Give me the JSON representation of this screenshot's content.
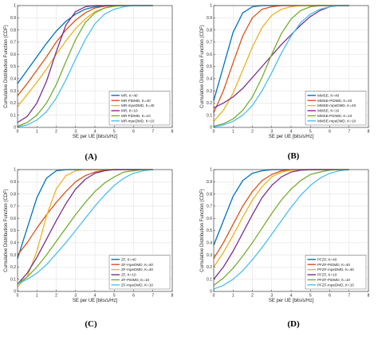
{
  "colors": {
    "blue": "#0072bd",
    "orange": "#d95319",
    "yellow": "#edb120",
    "purple": "#7e2f8e",
    "green": "#77ac30",
    "cyan": "#4dbeee",
    "grid": "#e3e3e3",
    "axis": "#262626"
  },
  "chart_data": [
    {
      "panel": "(A)",
      "type": "line",
      "xlabel": "SE per UE [bits/s/Hz]",
      "ylabel": "Cumulative Distribution Function (CDF)",
      "xlim": [
        0,
        8
      ],
      "ylim": [
        0,
        1
      ],
      "xticks": [
        "0",
        "1",
        "2",
        "3",
        "4",
        "5",
        "6",
        "7",
        "8"
      ],
      "yticks": [
        "0",
        "0.1",
        "0.2",
        "0.3",
        "0.4",
        "0.5",
        "0.6",
        "0.7",
        "0.8",
        "0.9",
        "1"
      ],
      "grid": true,
      "legend_position": "bottom-right",
      "series": [
        {
          "name": "MR, K=40",
          "color": "blue",
          "x": [
            0,
            0.5,
            1,
            1.5,
            2,
            2.5,
            3,
            3.5,
            4,
            4.5,
            5,
            5.5,
            6,
            6.5,
            7
          ],
          "y": [
            0.36,
            0.47,
            0.58,
            0.69,
            0.79,
            0.87,
            0.93,
            0.97,
            0.99,
            1.0,
            1.0,
            1.0,
            1.0,
            1.0,
            1.0
          ]
        },
        {
          "name": "MR-PiDMD, K=40",
          "color": "orange",
          "x": [
            0,
            0.5,
            1,
            1.5,
            2,
            2.5,
            3,
            3.5,
            4,
            4.5,
            5,
            5.5,
            6,
            6.5,
            7
          ],
          "y": [
            0.26,
            0.36,
            0.47,
            0.58,
            0.7,
            0.8,
            0.88,
            0.94,
            0.98,
            0.995,
            1.0,
            1.0,
            1.0,
            1.0,
            1.0
          ]
        },
        {
          "name": "MR-mpeDMD, K=40",
          "color": "yellow",
          "x": [
            0,
            0.5,
            1,
            1.5,
            2,
            2.5,
            3,
            3.5,
            4,
            4.5,
            5,
            5.5,
            6,
            6.5,
            7
          ],
          "y": [
            0.17,
            0.27,
            0.37,
            0.48,
            0.6,
            0.71,
            0.81,
            0.89,
            0.95,
            0.98,
            0.995,
            1.0,
            1.0,
            1.0,
            1.0
          ]
        },
        {
          "name": "MR, K=10",
          "color": "purple",
          "x": [
            0,
            0.5,
            1,
            1.5,
            2,
            2.5,
            3,
            3.5,
            4,
            4.5,
            5,
            5.5,
            6,
            6.5,
            7
          ],
          "y": [
            0.04,
            0.09,
            0.2,
            0.38,
            0.62,
            0.84,
            0.95,
            0.99,
            1.0,
            1.0,
            1.0,
            1.0,
            1.0,
            1.0,
            1.0
          ]
        },
        {
          "name": "MR-PiDMD, K=10",
          "color": "green",
          "x": [
            0,
            0.5,
            1,
            1.5,
            2,
            2.5,
            3,
            3.5,
            4,
            4.5,
            5,
            5.5,
            6,
            6.5,
            7
          ],
          "y": [
            0.01,
            0.04,
            0.1,
            0.2,
            0.35,
            0.54,
            0.72,
            0.86,
            0.94,
            0.98,
            0.995,
            1.0,
            1.0,
            1.0,
            1.0
          ]
        },
        {
          "name": "MR-mpeDMD, K=10",
          "color": "cyan",
          "x": [
            0,
            0.5,
            1,
            1.5,
            2,
            2.5,
            3,
            3.5,
            4,
            4.5,
            5,
            5.5,
            6,
            6.5,
            7
          ],
          "y": [
            0.005,
            0.02,
            0.06,
            0.13,
            0.24,
            0.39,
            0.56,
            0.72,
            0.85,
            0.93,
            0.97,
            0.99,
            1.0,
            1.0,
            1.0
          ]
        }
      ]
    },
    {
      "panel": "(B)",
      "type": "line",
      "xlabel": "SE per UE [bits/s/Hz]",
      "ylabel": "Cumulative Distribution Function (CDF)",
      "xlim": [
        0,
        8
      ],
      "ylim": [
        0,
        1
      ],
      "xticks": [
        "0",
        "1",
        "2",
        "3",
        "4",
        "5",
        "6",
        "7",
        "8"
      ],
      "yticks": [
        "0",
        "0.1",
        "0.2",
        "0.3",
        "0.4",
        "0.5",
        "0.6",
        "0.7",
        "0.8",
        "0.9",
        "1"
      ],
      "grid": true,
      "legend_position": "bottom-right",
      "series": [
        {
          "name": "MMSE, K=40",
          "color": "blue",
          "x": [
            0,
            0.5,
            1,
            1.5,
            2,
            2.5,
            3,
            3.5,
            4,
            4.5,
            5,
            5.5,
            6,
            6.5,
            7
          ],
          "y": [
            0.22,
            0.5,
            0.78,
            0.94,
            0.99,
            1.0,
            1.0,
            1.0,
            1.0,
            1.0,
            1.0,
            1.0,
            1.0,
            1.0,
            1.0
          ]
        },
        {
          "name": "MMSE-PiDMD, K=40",
          "color": "orange",
          "x": [
            0,
            0.5,
            1,
            1.5,
            2,
            2.5,
            3,
            3.5,
            4,
            4.5,
            5,
            5.5,
            6,
            6.5,
            7
          ],
          "y": [
            0.12,
            0.3,
            0.53,
            0.75,
            0.9,
            0.97,
            0.99,
            1.0,
            1.0,
            1.0,
            1.0,
            1.0,
            1.0,
            1.0,
            1.0
          ]
        },
        {
          "name": "MMSE-mpeDMD, K=40",
          "color": "yellow",
          "x": [
            0,
            0.5,
            1,
            1.5,
            2,
            2.5,
            3,
            3.5,
            4,
            4.5,
            5,
            5.5,
            6,
            6.5,
            7
          ],
          "y": [
            0.05,
            0.14,
            0.28,
            0.47,
            0.66,
            0.82,
            0.92,
            0.97,
            0.99,
            1.0,
            1.0,
            1.0,
            1.0,
            1.0,
            1.0
          ]
        },
        {
          "name": "MMSE, K=10",
          "color": "purple",
          "x": [
            0,
            0.5,
            1,
            1.5,
            2,
            2.5,
            3,
            3.5,
            4,
            4.5,
            5,
            5.5,
            6,
            6.5,
            7
          ],
          "y": [
            0.16,
            0.2,
            0.25,
            0.32,
            0.41,
            0.5,
            0.59,
            0.68,
            0.76,
            0.84,
            0.91,
            0.96,
            0.99,
            1.0,
            1.0
          ]
        },
        {
          "name": "MMSE-PiDMD, K=10",
          "color": "green",
          "x": [
            0,
            0.5,
            1,
            1.5,
            2,
            2.5,
            3,
            3.5,
            4,
            4.5,
            5,
            5.5,
            6,
            6.5,
            7
          ],
          "y": [
            0.01,
            0.03,
            0.07,
            0.14,
            0.25,
            0.41,
            0.6,
            0.77,
            0.89,
            0.96,
            0.99,
            1.0,
            1.0,
            1.0,
            1.0
          ]
        },
        {
          "name": "MMSE-mpeDMD, K=10",
          "color": "cyan",
          "x": [
            0,
            0.5,
            1,
            1.5,
            2,
            2.5,
            3,
            3.5,
            4,
            4.5,
            5,
            5.5,
            6,
            6.5,
            7
          ],
          "y": [
            0.005,
            0.02,
            0.05,
            0.1,
            0.18,
            0.3,
            0.45,
            0.61,
            0.75,
            0.86,
            0.93,
            0.97,
            0.99,
            1.0,
            1.0
          ]
        }
      ]
    },
    {
      "panel": "(C)",
      "type": "line",
      "xlabel": "SE per UE [bits/s/Hz]",
      "ylabel": "Cumulative Distribution Function (CDF)",
      "xlim": [
        0,
        8
      ],
      "ylim": [
        0,
        1
      ],
      "xticks": [
        "0",
        "1",
        "2",
        "3",
        "4",
        "5",
        "6",
        "7",
        "8"
      ],
      "yticks": [
        "0",
        "0.1",
        "0.2",
        "0.3",
        "0.4",
        "0.5",
        "0.6",
        "0.7",
        "0.8",
        "0.9",
        "1"
      ],
      "grid": true,
      "legend_position": "bottom-right",
      "series": [
        {
          "name": "ZF, K=40",
          "color": "blue",
          "x": [
            0,
            0.5,
            1,
            1.5,
            2,
            2.5,
            3,
            3.5,
            4,
            4.5,
            5,
            5.5,
            6,
            6.5,
            7
          ],
          "y": [
            0.27,
            0.52,
            0.77,
            0.93,
            0.99,
            1.0,
            1.0,
            1.0,
            1.0,
            1.0,
            1.0,
            1.0,
            1.0,
            1.0,
            1.0
          ]
        },
        {
          "name": "ZF-mpeDMD, K=40",
          "color": "orange",
          "x": [
            0,
            0.5,
            1,
            1.5,
            2,
            2.5,
            3,
            3.5,
            4,
            4.5,
            5,
            5.5,
            6,
            6.5,
            7
          ],
          "y": [
            0.3,
            0.4,
            0.52,
            0.63,
            0.73,
            0.82,
            0.9,
            0.95,
            0.98,
            0.995,
            1.0,
            1.0,
            1.0,
            1.0,
            1.0
          ]
        },
        {
          "name": "ZF-mpeDMD, K=40",
          "color": "yellow",
          "x": [
            0,
            0.5,
            1,
            1.5,
            2,
            2.5,
            3,
            3.5,
            4,
            4.5,
            5,
            5.5,
            6,
            6.5,
            7
          ],
          "y": [
            0.04,
            0.12,
            0.33,
            0.62,
            0.84,
            0.95,
            0.99,
            1.0,
            1.0,
            1.0,
            1.0,
            1.0,
            1.0,
            1.0,
            1.0
          ]
        },
        {
          "name": "ZF, K=10",
          "color": "purple",
          "x": [
            0,
            0.5,
            1,
            1.5,
            2,
            2.5,
            3,
            3.5,
            4,
            4.5,
            5,
            5.5,
            6,
            6.5,
            7
          ],
          "y": [
            0.06,
            0.15,
            0.28,
            0.43,
            0.58,
            0.72,
            0.84,
            0.92,
            0.97,
            0.99,
            1.0,
            1.0,
            1.0,
            1.0,
            1.0
          ]
        },
        {
          "name": "ZF-PiDMD, K=10",
          "color": "green",
          "x": [
            0,
            0.5,
            1,
            1.5,
            2,
            2.5,
            3,
            3.5,
            4,
            4.5,
            5,
            5.5,
            6,
            6.5,
            7
          ],
          "y": [
            0.06,
            0.12,
            0.2,
            0.3,
            0.41,
            0.52,
            0.63,
            0.73,
            0.82,
            0.89,
            0.94,
            0.98,
            0.99,
            1.0,
            1.0
          ]
        },
        {
          "name": "ZF-mpeDMD, K=10",
          "color": "cyan",
          "x": [
            0,
            0.5,
            1,
            1.5,
            2,
            2.5,
            3,
            3.5,
            4,
            4.5,
            5,
            5.5,
            6,
            6.5,
            7
          ],
          "y": [
            0.06,
            0.1,
            0.15,
            0.22,
            0.31,
            0.4,
            0.5,
            0.6,
            0.7,
            0.79,
            0.87,
            0.93,
            0.97,
            0.99,
            1.0
          ]
        }
      ]
    },
    {
      "panel": "(D)",
      "type": "line",
      "xlabel": "SE per UE [bits/s/Hz]",
      "ylabel": "Cumulative Distribution Function (CDF)",
      "xlim": [
        0,
        8
      ],
      "ylim": [
        0,
        1
      ],
      "xticks": [
        "0",
        "1",
        "2",
        "3",
        "4",
        "5",
        "6",
        "7",
        "8"
      ],
      "yticks": [
        "0",
        "0.1",
        "0.2",
        "0.3",
        "0.4",
        "0.5",
        "0.6",
        "0.7",
        "0.8",
        "0.9",
        "1"
      ],
      "grid": true,
      "legend_position": "bottom-right",
      "series": [
        {
          "name": "PFZF, K=40",
          "color": "blue",
          "x": [
            0,
            0.5,
            1,
            1.5,
            2,
            2.5,
            3,
            3.5,
            4,
            4.5,
            5,
            5.5,
            6,
            6.5,
            7
          ],
          "y": [
            0.38,
            0.58,
            0.78,
            0.91,
            0.97,
            0.99,
            1.0,
            1.0,
            1.0,
            1.0,
            1.0,
            1.0,
            1.0,
            1.0,
            1.0
          ]
        },
        {
          "name": "PFZF-PiDMD, K=40",
          "color": "orange",
          "x": [
            0,
            0.5,
            1,
            1.5,
            2,
            2.5,
            3,
            3.5,
            4,
            4.5,
            5,
            5.5,
            6,
            6.5,
            7
          ],
          "y": [
            0.27,
            0.4,
            0.55,
            0.7,
            0.82,
            0.91,
            0.96,
            0.99,
            1.0,
            1.0,
            1.0,
            1.0,
            1.0,
            1.0,
            1.0
          ]
        },
        {
          "name": "PFZF-mpeDMD, K=40",
          "color": "yellow",
          "x": [
            0,
            0.5,
            1,
            1.5,
            2,
            2.5,
            3,
            3.5,
            4,
            4.5,
            5,
            5.5,
            6,
            6.5,
            7
          ],
          "y": [
            0.2,
            0.32,
            0.46,
            0.61,
            0.75,
            0.86,
            0.94,
            0.98,
            0.995,
            1.0,
            1.0,
            1.0,
            1.0,
            1.0,
            1.0
          ]
        },
        {
          "name": "PFZF, K=10",
          "color": "purple",
          "x": [
            0,
            0.5,
            1,
            1.5,
            2,
            2.5,
            3,
            3.5,
            4,
            4.5,
            5,
            5.5,
            6,
            6.5,
            7
          ],
          "y": [
            0.1,
            0.2,
            0.33,
            0.48,
            0.63,
            0.77,
            0.87,
            0.94,
            0.98,
            0.995,
            1.0,
            1.0,
            1.0,
            1.0,
            1.0
          ]
        },
        {
          "name": "PFZF-PiDMD, K=10",
          "color": "green",
          "x": [
            0,
            0.5,
            1,
            1.5,
            2,
            2.5,
            3,
            3.5,
            4,
            4.5,
            5,
            5.5,
            6,
            6.5,
            7
          ],
          "y": [
            0.05,
            0.11,
            0.19,
            0.29,
            0.4,
            0.52,
            0.64,
            0.75,
            0.84,
            0.91,
            0.96,
            0.98,
            0.995,
            1.0,
            1.0
          ]
        },
        {
          "name": "PFZF-mpeDMD, K=10",
          "color": "cyan",
          "x": [
            0,
            0.5,
            1,
            1.5,
            2,
            2.5,
            3,
            3.5,
            4,
            4.5,
            5,
            5.5,
            6,
            6.5,
            7
          ],
          "y": [
            0.02,
            0.05,
            0.1,
            0.17,
            0.26,
            0.36,
            0.47,
            0.58,
            0.69,
            0.79,
            0.87,
            0.93,
            0.97,
            0.99,
            1.0
          ]
        }
      ]
    }
  ]
}
